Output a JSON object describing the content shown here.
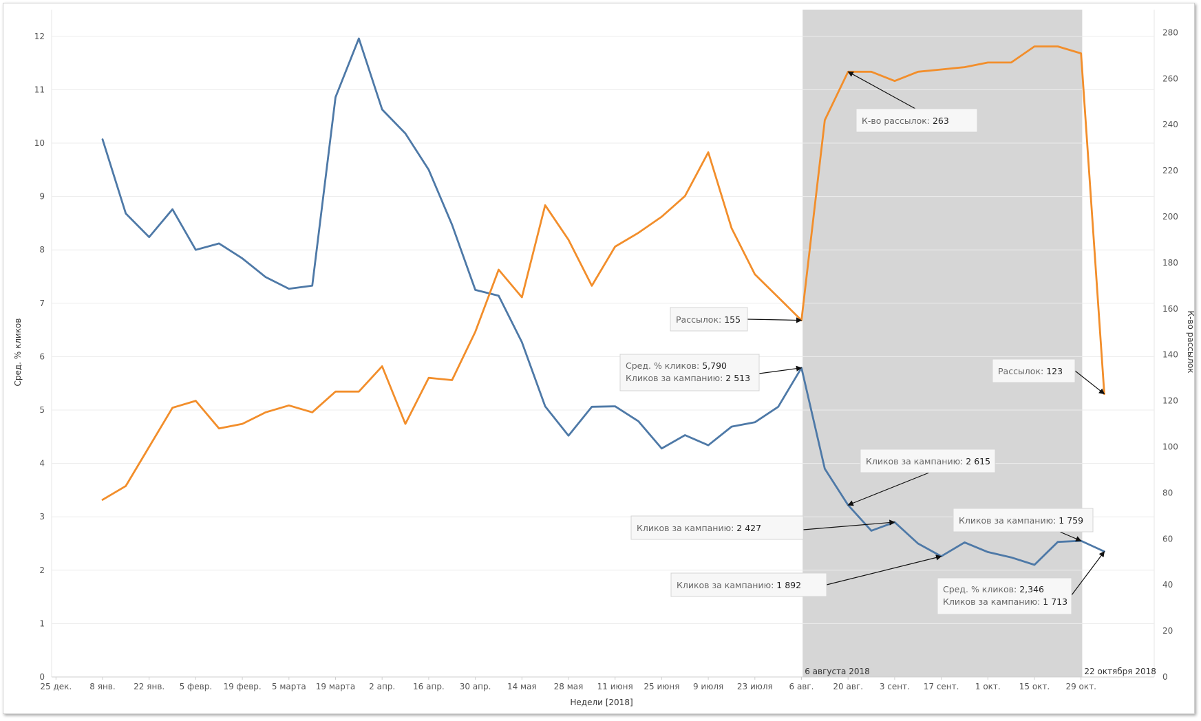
{
  "chart_data": {
    "type": "line",
    "xlabel": "Недели [2018]",
    "ylabel_left": "Сред. % кликов",
    "ylabel_right": "К-во рассылок",
    "ylim_left": [
      0,
      12.5
    ],
    "ylim_right": [
      0,
      290
    ],
    "yticks_left": [
      "0",
      "1",
      "2",
      "3",
      "4",
      "5",
      "6",
      "7",
      "8",
      "9",
      "10",
      "11",
      "12"
    ],
    "yticks_right": [
      "0",
      "20",
      "40",
      "60",
      "80",
      "100",
      "120",
      "140",
      "160",
      "180",
      "200",
      "220",
      "240",
      "260",
      "280"
    ],
    "x_tick_labels": [
      "25 дек.",
      "8 янв.",
      "22 янв.",
      "5 февр.",
      "19 февр.",
      "5 марта",
      "19 марта",
      "2 апр.",
      "16 апр.",
      "30 апр.",
      "14 мая",
      "28 мая",
      "11 июня",
      "25 июня",
      "9 июля",
      "23 июля",
      "6 авг.",
      "20 авг.",
      "3 сент.",
      "17 сент.",
      "1 окт.",
      "15 окт.",
      "29 окт."
    ],
    "x": [
      "01 янв.",
      "08 янв.",
      "15 янв.",
      "22 янв.",
      "29 янв.",
      "05 февр.",
      "12 февр.",
      "19 февр.",
      "26 февр.",
      "05 марта",
      "12 марта",
      "19 марта",
      "26 марта",
      "02 апр.",
      "09 апр.",
      "16 апр.",
      "23 апр.",
      "30 апр.",
      "07 мая",
      "14 мая",
      "21 мая",
      "28 мая",
      "04 июня",
      "11 июня",
      "18 июня",
      "25 июня",
      "02 июля",
      "09 июля",
      "16 июля",
      "23 июля",
      "30 июля",
      "06 авг.",
      "13 авг.",
      "20 авг.",
      "27 авг.",
      "03 сент.",
      "10 сент.",
      "17 сент.",
      "24 сент.",
      "01 окт.",
      "08 окт.",
      "15 окт.",
      "22 окт.",
      "29 окт."
    ],
    "series": [
      {
        "name": "Сред. % кликов",
        "axis": "left",
        "color": "#4e79a7",
        "values": [
          10.07,
          8.68,
          8.24,
          8.76,
          8.0,
          8.12,
          7.84,
          7.49,
          7.27,
          7.33,
          10.86,
          11.96,
          10.63,
          10.18,
          9.5,
          8.47,
          7.25,
          7.14,
          6.27,
          5.07,
          4.52,
          5.06,
          5.07,
          4.79,
          4.28,
          4.53,
          4.34,
          4.69,
          4.77,
          5.06,
          5.79,
          3.9,
          3.22,
          2.74,
          2.9,
          2.5,
          2.26,
          2.52,
          2.34,
          2.24,
          2.1,
          2.53,
          2.55,
          2.35
        ]
      },
      {
        "name": "К-во рассылок",
        "axis": "right",
        "color": "#f28e2b",
        "values": [
          77,
          83,
          100,
          117,
          120,
          108,
          110,
          115,
          118,
          115,
          124,
          124,
          135,
          110,
          130,
          129,
          150,
          177,
          165,
          205,
          190,
          170,
          187,
          193,
          200,
          209,
          228,
          195,
          175,
          165,
          155,
          242,
          263,
          263,
          259,
          263,
          264,
          265,
          267,
          267,
          274,
          274,
          271,
          123
        ]
      }
    ],
    "highlight_region": {
      "from": "06 авг.",
      "to": "22 окт.",
      "label_start": "6 августа 2018",
      "label_end": "22 октября 2018",
      "color": "#d6d6d6"
    },
    "annotations": [
      {
        "lines": [
          {
            "label": "К-во рассылок: ",
            "value": "263"
          }
        ]
      },
      {
        "lines": [
          {
            "label": "Рассылок: ",
            "value": "155"
          }
        ]
      },
      {
        "lines": [
          {
            "label": "Сред. % кликов: ",
            "value": "5,790"
          },
          {
            "label": "Кликов за кампанию: ",
            "value": "2 513"
          }
        ]
      },
      {
        "lines": [
          {
            "label": "Рассылок: ",
            "value": "123"
          }
        ]
      },
      {
        "lines": [
          {
            "label": "Кликов за кампанию: ",
            "value": "2 615"
          }
        ]
      },
      {
        "lines": [
          {
            "label": "Кликов за кампанию: ",
            "value": "2 427"
          }
        ]
      },
      {
        "lines": [
          {
            "label": "Кликов за кампанию: ",
            "value": "1 759"
          }
        ]
      },
      {
        "lines": [
          {
            "label": "Кликов за кампанию: ",
            "value": "1 892"
          }
        ]
      },
      {
        "lines": [
          {
            "label": "Сред. % кликов: ",
            "value": "2,346"
          },
          {
            "label": "Кликов за кампанию: ",
            "value": "1 713"
          }
        ]
      }
    ]
  }
}
